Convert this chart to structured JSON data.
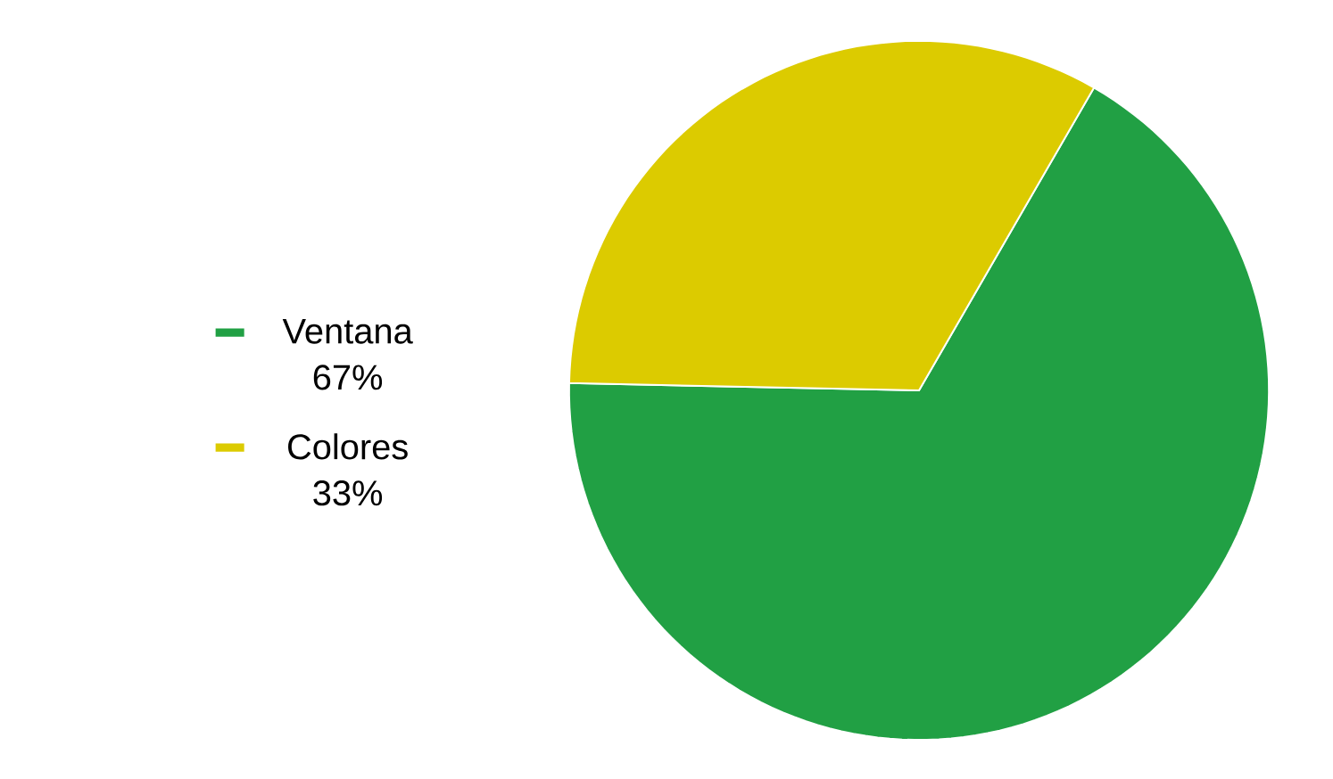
{
  "chart_data": {
    "type": "pie",
    "categories": [
      "Ventana",
      "Colores"
    ],
    "values": [
      67,
      33
    ],
    "value_labels": [
      "67%",
      "33%"
    ],
    "colors": [
      "#21a044",
      "#dccb00"
    ],
    "legend": "left"
  }
}
